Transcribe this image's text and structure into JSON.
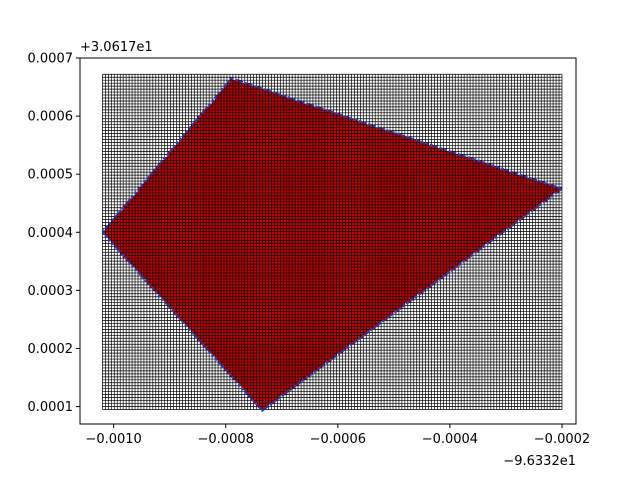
{
  "chart_data": {
    "type": "scatter",
    "title": "",
    "xlabel": "",
    "ylabel": "",
    "x_offset_label": "−9.6332e1",
    "y_offset_label": "+3.0617e1",
    "xlim": [
      -0.00106,
      -0.000175
    ],
    "ylim": [
      7e-05,
      0.0007
    ],
    "x_ticks": [
      {
        "value": -0.001,
        "label": "−0.0010"
      },
      {
        "value": -0.0008,
        "label": "−0.0008"
      },
      {
        "value": -0.0006,
        "label": "−0.0006"
      },
      {
        "value": -0.0004,
        "label": "−0.0004"
      },
      {
        "value": -0.0002,
        "label": "−0.0002"
      }
    ],
    "y_ticks": [
      {
        "value": 0.0001,
        "label": "0.0001"
      },
      {
        "value": 0.0002,
        "label": "0.0002"
      },
      {
        "value": 0.0003,
        "label": "0.0003"
      },
      {
        "value": 0.0004,
        "label": "0.0004"
      },
      {
        "value": 0.0005,
        "label": "0.0005"
      },
      {
        "value": 0.0006,
        "label": "0.0006"
      },
      {
        "value": 0.0007,
        "label": "0.0007"
      }
    ],
    "grid_cells": {
      "x_range": [
        -0.00102,
        -0.0002
      ],
      "y_range": [
        9.5e-05,
        0.000672
      ],
      "cell_size": 5.3e-06,
      "outside_fill": "#ffffff",
      "inside_fill": "#cc0000",
      "edge_color": "#000000"
    },
    "polygon": {
      "color": "#1f3fbf",
      "vertices": [
        {
          "x": -0.00102,
          "y": 0.0004
        },
        {
          "x": -0.00079,
          "y": 0.000665
        },
        {
          "x": -0.0002,
          "y": 0.000475
        },
        {
          "x": -0.000735,
          "y": 9.3e-05
        },
        {
          "x": -0.00102,
          "y": 0.0004
        }
      ]
    }
  }
}
